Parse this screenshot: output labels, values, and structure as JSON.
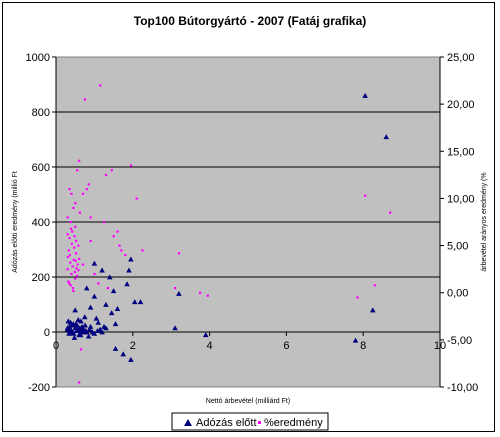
{
  "chart_data": {
    "type": "scatter",
    "title": "Top100 Bútorgyártó - 2007 (Fatáj grafika)",
    "xlabel": "Nettó árbevétel (milliárd Ft)",
    "ylabel": "Adózás előtti eredmény (millió Ft",
    "y2label": "árbevétel arányos eredmény (%",
    "xlim": [
      0,
      10
    ],
    "ylim": [
      -200,
      1000
    ],
    "y2lim": [
      -10,
      25
    ],
    "x_ticks": [
      "0",
      "2",
      "4",
      "6",
      "8",
      "10"
    ],
    "y_ticks": [
      "-200",
      "0",
      "200",
      "400",
      "600",
      "800",
      "1000"
    ],
    "y2_ticks": [
      "-10,00",
      "-5,00",
      "0,00",
      "5,00",
      "10,00",
      "15,00",
      "20,00",
      "25,00"
    ],
    "grid": true,
    "plot_background": "#c0c0c0",
    "legend_position": "bottom",
    "series": [
      {
        "name": "Adózás előtt",
        "axis": "left",
        "marker": "triangle",
        "color": "#000080",
        "x": [
          8.05,
          8.6,
          1.95,
          1.9,
          2.05,
          1.85,
          1.0,
          1.2,
          1.4,
          2.2,
          1.5,
          1.0,
          1.3,
          0.8,
          0.9,
          1.45,
          1.6,
          1.05,
          0.75,
          0.5,
          0.65,
          1.1,
          1.25,
          1.55,
          3.1,
          3.2,
          3.9,
          7.8,
          8.25,
          1.55,
          1.75,
          1.95,
          0.3,
          0.35,
          0.4,
          0.45,
          0.5,
          0.55,
          0.6,
          0.65,
          0.7,
          0.8,
          0.9,
          1.0,
          1.15,
          1.3,
          0.32,
          0.38,
          0.42,
          0.48,
          0.52,
          0.58,
          0.62,
          0.68,
          0.72,
          0.78,
          0.85,
          0.95,
          0.34,
          0.44,
          0.54,
          0.64,
          0.74,
          0.3,
          0.36,
          0.46,
          0.56,
          0.66,
          0.76,
          0.88,
          1.08,
          1.2
        ],
        "y": [
          860,
          710,
          265,
          225,
          110,
          175,
          250,
          225,
          200,
          110,
          150,
          130,
          100,
          160,
          90,
          70,
          85,
          50,
          55,
          80,
          40,
          35,
          20,
          30,
          15,
          140,
          -10,
          -30,
          80,
          -60,
          -80,
          -100,
          10,
          20,
          5,
          30,
          15,
          25,
          -10,
          10,
          5,
          0,
          20,
          -5,
          10,
          15,
          40,
          35,
          25,
          -20,
          30,
          45,
          15,
          20,
          10,
          5,
          -15,
          0,
          -5,
          0,
          5,
          -10,
          0,
          15,
          5,
          -5,
          10,
          0,
          25,
          10,
          5,
          0
        ]
      },
      {
        "name": "%eredmény",
        "axis": "right",
        "marker": "dot",
        "color": "#ff00ff",
        "x": [
          1.15,
          0.75,
          1.95,
          1.45,
          2.1,
          0.85,
          1.3,
          8.05,
          8.7,
          3.2,
          2.25,
          3.1,
          3.75,
          3.95,
          7.85,
          8.3,
          0.6,
          0.8,
          0.55,
          0.7,
          0.45,
          0.9,
          0.5,
          1.65,
          1.7,
          1.25,
          1.5,
          0.35,
          0.4,
          0.5,
          0.62,
          0.3,
          0.38,
          0.42,
          0.48,
          0.52,
          0.58,
          0.33,
          0.36,
          0.46,
          0.56,
          0.3,
          0.4,
          0.5,
          0.34,
          0.44,
          0.31,
          0.37,
          0.43,
          0.49,
          0.55,
          0.32,
          0.38,
          0.45,
          0.52,
          0.6,
          0.35,
          0.41,
          0.47,
          0.53,
          0.3,
          0.39,
          0.51,
          0.58,
          0.9,
          1.0,
          1.1,
          1.35,
          1.6,
          1.8,
          0.7,
          0.85,
          0.65,
          0.6,
          0.55
        ],
        "y": [
          22.0,
          20.5,
          13.5,
          13.0,
          10.0,
          11.5,
          12.5,
          10.3,
          8.5,
          4.2,
          4.5,
          0.5,
          0.0,
          -0.3,
          -0.5,
          0.8,
          14.0,
          11.0,
          13.0,
          10.5,
          9.0,
          8.0,
          7.0,
          5.0,
          4.5,
          7.5,
          6.0,
          11.0,
          10.5,
          9.5,
          8.5,
          8.0,
          7.5,
          6.5,
          6.0,
          5.5,
          5.0,
          4.5,
          4.0,
          3.5,
          3.0,
          2.5,
          2.0,
          1.5,
          1.0,
          0.5,
          3.8,
          3.2,
          2.8,
          2.2,
          1.8,
          1.2,
          0.8,
          0.2,
          4.2,
          3.6,
          5.8,
          5.2,
          4.8,
          2.6,
          6.2,
          6.8,
          3.4,
          2.4,
          5.5,
          2.0,
          1.0,
          0.5,
          6.5,
          4.0,
          3.0,
          -4.0,
          -6.0,
          -9.5,
          -3.0
        ]
      }
    ]
  }
}
